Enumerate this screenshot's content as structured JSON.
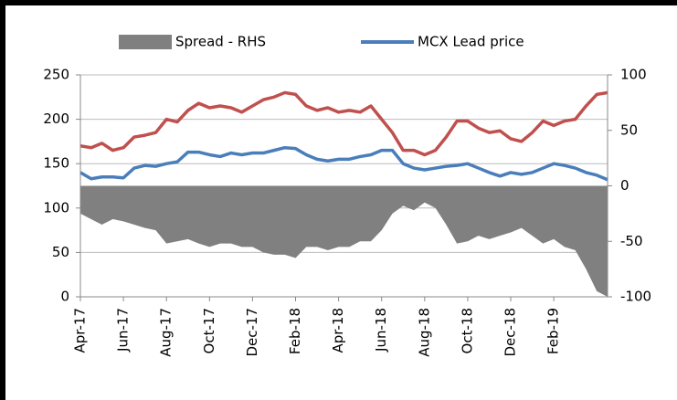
{
  "chart_data": {
    "type": "line",
    "categories": [
      "Apr-17",
      null,
      null,
      null,
      "Jun-17",
      null,
      null,
      null,
      "Aug-17",
      null,
      null,
      null,
      "Oct-17",
      null,
      null,
      null,
      "Dec-17",
      null,
      null,
      null,
      "Feb-18",
      null,
      null,
      null,
      "Apr-18",
      null,
      null,
      null,
      "Jun-18",
      null,
      null,
      null,
      "Aug-18",
      null,
      null,
      null,
      "Oct-18",
      null,
      null,
      null,
      "Dec-18",
      null,
      null,
      null,
      "Feb-19",
      null,
      null,
      null,
      null,
      null
    ],
    "series": [
      {
        "name": "Spread - RHS",
        "color": "#808080",
        "mark": "area",
        "axis": "y2",
        "values": [
          -25,
          -30,
          -35,
          -30,
          -32,
          -35,
          -38,
          -40,
          -52,
          -50,
          -48,
          -52,
          -55,
          -52,
          -52,
          -55,
          -55,
          -60,
          -62,
          -62,
          -65,
          -55,
          -55,
          -58,
          -55,
          -55,
          -50,
          -50,
          -40,
          -25,
          -18,
          -22,
          -15,
          -20,
          -35,
          -52,
          -50,
          -45,
          -48,
          -45,
          -42,
          -38,
          -45,
          -52,
          -48,
          -55,
          -58,
          -75,
          -95,
          -100
        ]
      },
      {
        "color": "#c0504d",
        "mark": "line",
        "values": [
          170,
          168,
          173,
          165,
          168,
          180,
          182,
          185,
          200,
          197,
          210,
          218,
          213,
          215,
          213,
          208,
          215,
          222,
          225,
          230,
          228,
          215,
          210,
          213,
          208,
          210,
          208,
          215,
          200,
          185,
          165,
          165,
          160,
          165,
          180,
          198,
          198,
          190,
          185,
          187,
          178,
          175,
          185,
          198,
          193,
          198,
          200,
          215,
          228,
          230
        ]
      },
      {
        "name": "MCX Lead price",
        "color": "#4a7ebb",
        "mark": "line",
        "values": [
          140,
          133,
          135,
          135,
          134,
          145,
          148,
          147,
          150,
          152,
          163,
          163,
          160,
          158,
          162,
          160,
          162,
          162,
          165,
          168,
          167,
          160,
          155,
          153,
          155,
          155,
          158,
          160,
          165,
          165,
          150,
          145,
          143,
          145,
          147,
          148,
          150,
          145,
          140,
          136,
          140,
          138,
          140,
          145,
          150,
          148,
          145,
          140,
          137,
          132
        ]
      }
    ],
    "ylim": [
      0,
      250
    ],
    "yticks": [
      0,
      50,
      100,
      150,
      200,
      250
    ],
    "y2lim": [
      -100,
      100
    ],
    "y2ticks": [
      -100,
      -50,
      0,
      50,
      100
    ],
    "grid": true,
    "legend": "top"
  }
}
